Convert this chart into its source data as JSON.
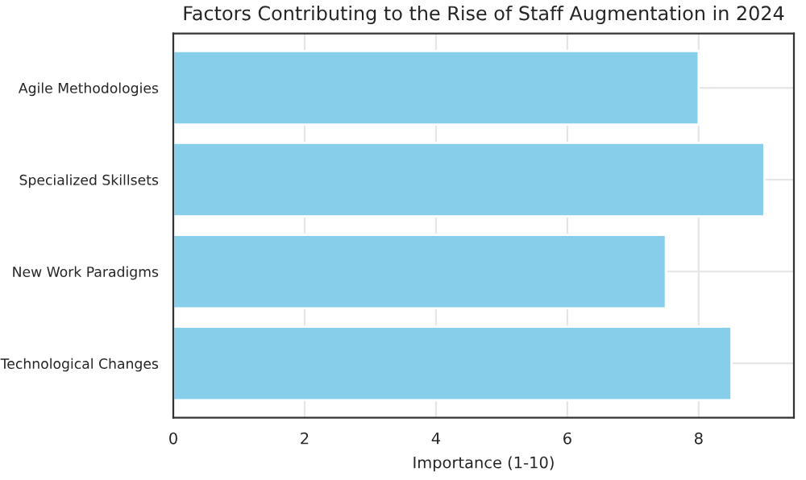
{
  "chart_data": {
    "type": "bar",
    "orientation": "horizontal",
    "title": "Factors Contributing to the Rise of Staff Augmentation in 2024",
    "xlabel": "Importance (1-10)",
    "categories": [
      "Agile Methodologies",
      "Specialized Skillsets",
      "New Work Paradigms",
      "Technological Changes"
    ],
    "values": [
      8,
      9,
      7.5,
      8.5
    ],
    "color": "#87ceeb",
    "xlim": [
      0,
      9.45
    ],
    "xticks": [
      0,
      2,
      4,
      6,
      8
    ],
    "grid": true
  }
}
